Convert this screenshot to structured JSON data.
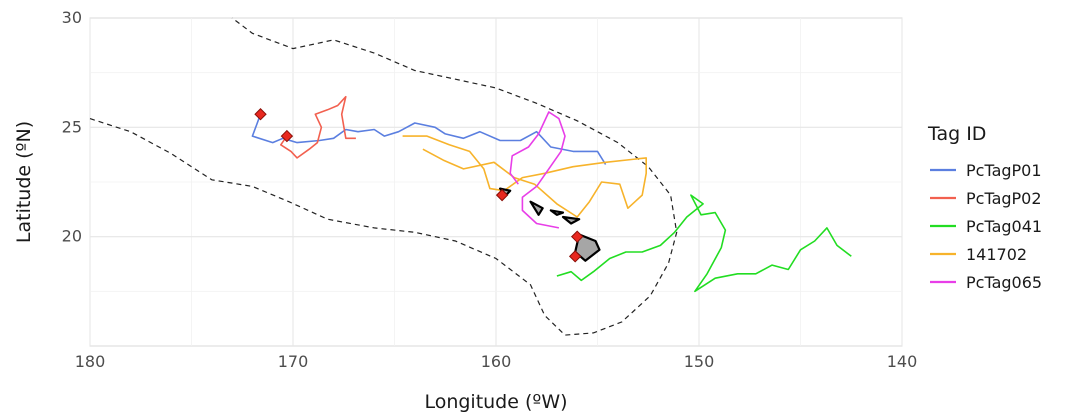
{
  "chart_data": {
    "type": "map",
    "title": "",
    "xlabel": "Longitude (ºW)",
    "ylabel": "Latitude (ºN)",
    "xlim": [
      180,
      140
    ],
    "ylim": [
      15,
      30
    ],
    "x_reversed": true,
    "x_ticks": [
      180,
      170,
      160,
      150,
      140
    ],
    "y_ticks": [
      20,
      25,
      30
    ],
    "grid": true,
    "legend": {
      "title": "Tag ID",
      "placement": "right",
      "entries": [
        {
          "name": "PcTagP01",
          "color": "#5b7fe0"
        },
        {
          "name": "PcTagP02",
          "color": "#f2604f"
        },
        {
          "name": "PcTag041",
          "color": "#22dd22"
        },
        {
          "name": "141702",
          "color": "#f7b32b"
        },
        {
          "name": "PcTag065",
          "color": "#e83ee8"
        }
      ]
    },
    "tracks": [
      {
        "name": "PcTagP01",
        "color": "#5b7fe0",
        "points": [
          [
            171.6,
            25.6
          ],
          [
            171.8,
            25.1
          ],
          [
            172.0,
            24.6
          ],
          [
            171.0,
            24.3
          ],
          [
            170.5,
            24.5
          ],
          [
            169.8,
            24.3
          ],
          [
            168.7,
            24.4
          ],
          [
            168.0,
            24.5
          ],
          [
            167.4,
            24.9
          ],
          [
            166.8,
            24.8
          ],
          [
            166.0,
            24.9
          ],
          [
            165.5,
            24.6
          ],
          [
            164.8,
            24.8
          ],
          [
            164.0,
            25.2
          ],
          [
            163.0,
            25.0
          ],
          [
            162.5,
            24.7
          ],
          [
            161.6,
            24.5
          ],
          [
            160.8,
            24.8
          ],
          [
            159.8,
            24.4
          ],
          [
            158.8,
            24.4
          ],
          [
            158.0,
            24.8
          ],
          [
            157.3,
            24.1
          ],
          [
            156.2,
            23.9
          ],
          [
            155.0,
            23.9
          ],
          [
            154.6,
            23.3
          ]
        ]
      },
      {
        "name": "PcTagP02",
        "color": "#f2604f",
        "points": [
          [
            170.3,
            24.6
          ],
          [
            170.6,
            24.2
          ],
          [
            170.1,
            23.9
          ],
          [
            169.8,
            23.6
          ],
          [
            169.2,
            24.0
          ],
          [
            168.8,
            24.3
          ],
          [
            168.6,
            25.0
          ],
          [
            168.9,
            25.6
          ],
          [
            168.3,
            25.8
          ],
          [
            167.8,
            26.0
          ],
          [
            167.4,
            26.4
          ],
          [
            167.6,
            25.6
          ],
          [
            167.4,
            24.5
          ],
          [
            166.9,
            24.5
          ]
        ]
      },
      {
        "name": "PcTag041",
        "color": "#22dd22",
        "points": [
          [
            157.0,
            18.2
          ],
          [
            156.3,
            18.4
          ],
          [
            155.8,
            18.0
          ],
          [
            155.2,
            18.4
          ],
          [
            154.4,
            19.0
          ],
          [
            153.6,
            19.3
          ],
          [
            152.8,
            19.3
          ],
          [
            151.9,
            19.6
          ],
          [
            151.2,
            20.2
          ],
          [
            150.6,
            20.9
          ],
          [
            149.8,
            21.5
          ],
          [
            150.4,
            21.9
          ],
          [
            149.9,
            21.0
          ],
          [
            149.2,
            21.1
          ],
          [
            148.7,
            20.3
          ],
          [
            148.9,
            19.5
          ],
          [
            149.6,
            18.3
          ],
          [
            150.2,
            17.5
          ],
          [
            149.2,
            18.1
          ],
          [
            148.1,
            18.3
          ],
          [
            147.2,
            18.3
          ],
          [
            146.4,
            18.7
          ],
          [
            145.6,
            18.5
          ],
          [
            145.0,
            19.4
          ],
          [
            144.3,
            19.8
          ],
          [
            143.7,
            20.4
          ],
          [
            143.2,
            19.6
          ],
          [
            142.5,
            19.1
          ]
        ]
      },
      {
        "name": "141702",
        "color": "#f7b32b",
        "points": [
          [
            164.6,
            24.6
          ],
          [
            163.4,
            24.6
          ],
          [
            162.3,
            24.2
          ],
          [
            161.3,
            23.9
          ],
          [
            160.6,
            23.1
          ],
          [
            160.3,
            22.2
          ],
          [
            159.6,
            22.1
          ],
          [
            158.7,
            22.7
          ],
          [
            157.6,
            22.9
          ],
          [
            156.2,
            23.2
          ],
          [
            154.6,
            23.4
          ],
          [
            152.6,
            23.6
          ],
          [
            152.6,
            22.9
          ],
          [
            152.8,
            21.9
          ],
          [
            153.5,
            21.3
          ],
          [
            153.9,
            22.4
          ],
          [
            154.8,
            22.5
          ],
          [
            155.4,
            21.6
          ],
          [
            156.0,
            20.9
          ],
          [
            157.0,
            21.5
          ],
          [
            158.1,
            22.4
          ],
          [
            159.1,
            22.7
          ],
          [
            160.1,
            23.4
          ],
          [
            161.6,
            23.1
          ],
          [
            162.6,
            23.5
          ],
          [
            163.6,
            24.0
          ]
        ]
      },
      {
        "name": "PcTag065",
        "color": "#e83ee8",
        "points": [
          [
            158.9,
            22.4
          ],
          [
            159.3,
            22.9
          ],
          [
            159.2,
            23.7
          ],
          [
            158.4,
            24.1
          ],
          [
            157.9,
            24.7
          ],
          [
            157.4,
            25.7
          ],
          [
            156.9,
            25.4
          ],
          [
            156.6,
            24.6
          ],
          [
            156.8,
            23.9
          ],
          [
            157.4,
            23.1
          ],
          [
            158.0,
            22.3
          ],
          [
            158.7,
            21.8
          ],
          [
            158.7,
            21.2
          ],
          [
            158.0,
            20.6
          ],
          [
            156.9,
            20.4
          ]
        ]
      }
    ],
    "tag_locations": [
      [
        171.6,
        25.6
      ],
      [
        170.3,
        24.6
      ],
      [
        159.7,
        21.9
      ],
      [
        156.0,
        20.0
      ],
      [
        156.1,
        19.1
      ]
    ],
    "islands": [
      {
        "name": "",
        "points": [
          [
            155.9,
            20.1
          ],
          [
            155.1,
            19.8
          ],
          [
            154.9,
            19.4
          ],
          [
            155.6,
            18.9
          ],
          [
            156.1,
            19.3
          ],
          [
            155.9,
            20.1
          ]
        ]
      },
      {
        "name": "",
        "points": [
          [
            156.7,
            20.9
          ],
          [
            155.9,
            20.8
          ],
          [
            156.3,
            20.6
          ],
          [
            156.7,
            20.9
          ]
        ]
      },
      {
        "name": "",
        "points": [
          [
            157.3,
            21.2
          ],
          [
            156.7,
            21.1
          ],
          [
            157.0,
            21.0
          ],
          [
            157.3,
            21.2
          ]
        ]
      },
      {
        "name": "",
        "points": [
          [
            158.3,
            21.6
          ],
          [
            157.7,
            21.3
          ],
          [
            157.9,
            21.0
          ],
          [
            158.3,
            21.6
          ]
        ]
      },
      {
        "name": "",
        "points": [
          [
            159.8,
            22.2
          ],
          [
            159.3,
            22.1
          ],
          [
            159.5,
            21.9
          ],
          [
            159.8,
            22.2
          ]
        ]
      }
    ],
    "eez_boundary": [
      [
        180.0,
        25.4
      ],
      [
        178.0,
        24.8
      ],
      [
        176.0,
        23.8
      ],
      [
        174.0,
        22.6
      ],
      [
        172.0,
        22.3
      ],
      [
        170.2,
        21.6
      ],
      [
        168.3,
        20.8
      ],
      [
        166.0,
        20.4
      ],
      [
        164.0,
        20.2
      ],
      [
        162.0,
        19.8
      ],
      [
        160.0,
        19.0
      ],
      [
        158.3,
        17.8
      ],
      [
        157.6,
        16.4
      ],
      [
        156.6,
        15.5
      ],
      [
        155.2,
        15.6
      ],
      [
        153.8,
        16.1
      ],
      [
        152.4,
        17.3
      ],
      [
        151.5,
        18.8
      ],
      [
        151.1,
        20.2
      ],
      [
        151.4,
        21.9
      ],
      [
        152.5,
        23.2
      ],
      [
        154.0,
        24.3
      ],
      [
        156.0,
        25.3
      ],
      [
        158.0,
        26.1
      ],
      [
        160.0,
        26.8
      ],
      [
        162.0,
        27.2
      ],
      [
        164.0,
        27.6
      ],
      [
        166.0,
        28.4
      ],
      [
        168.0,
        29.0
      ],
      [
        170.0,
        28.6
      ],
      [
        172.0,
        29.3
      ],
      [
        173.0,
        30.0
      ]
    ]
  }
}
